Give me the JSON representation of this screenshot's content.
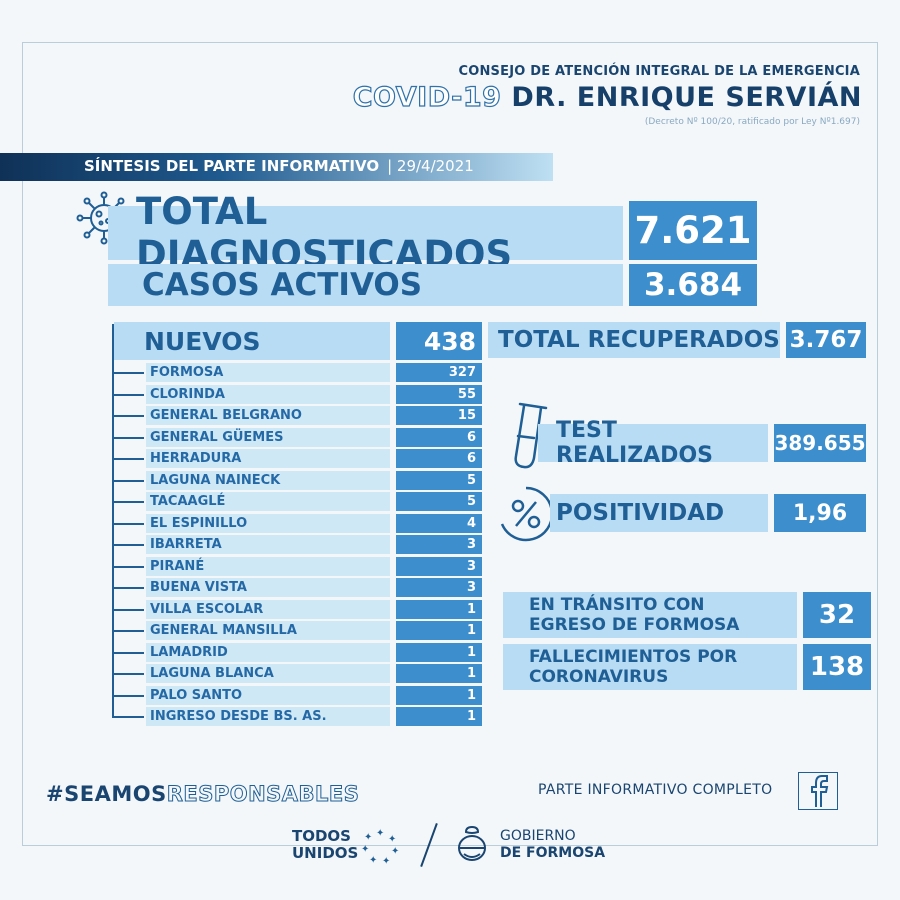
{
  "header": {
    "line1": "CONSEJO DE ATENCIÓN INTEGRAL DE LA EMERGENCIA",
    "covid": "COVID-19",
    "name": "DR. ENRIQUE SERVIÁN",
    "decree": "(Decreto Nº 100/20, ratificado por Ley Nº1.697)"
  },
  "synthesis": {
    "title": "SÍNTESIS DEL PARTE INFORMATIVO",
    "date": "| 29/4/2021"
  },
  "totals": {
    "diagnosed_label": "TOTAL DIAGNOSTICADOS",
    "diagnosed_value": "7.621",
    "active_label": "CASOS ACTIVOS",
    "active_value": "3.684",
    "new_label": "NUEVOS",
    "new_value": "438",
    "recovered_label": "TOTAL RECUPERADOS",
    "recovered_value": "3.767",
    "tests_label": "TEST REALIZADOS",
    "tests_value": "389.655",
    "positivity_label": "POSITIVIDAD",
    "positivity_value": "1,96",
    "transit_label_1": "EN TRÁNSITO CON",
    "transit_label_2": "EGRESO DE FORMOSA",
    "transit_value": "32",
    "deaths_label_1": "FALLECIMIENTOS POR",
    "deaths_label_2": "CORONAVIRUS",
    "deaths_value": "138"
  },
  "localities": [
    {
      "name": "FORMOSA",
      "value": "327"
    },
    {
      "name": "CLORINDA",
      "value": "55"
    },
    {
      "name": "GENERAL BELGRANO",
      "value": "15"
    },
    {
      "name": "GENERAL GÜEMES",
      "value": "6"
    },
    {
      "name": "HERRADURA",
      "value": "6"
    },
    {
      "name": "LAGUNA NAINECK",
      "value": "5"
    },
    {
      "name": "TACAAGLÉ",
      "value": "5"
    },
    {
      "name": "EL ESPINILLO",
      "value": "4"
    },
    {
      "name": "IBARRETA",
      "value": "3"
    },
    {
      "name": "PIRANÉ",
      "value": "3"
    },
    {
      "name": "BUENA VISTA",
      "value": "3"
    },
    {
      "name": "VILLA ESCOLAR",
      "value": "1"
    },
    {
      "name": "GENERAL MANSILLA",
      "value": "1"
    },
    {
      "name": "LAMADRID",
      "value": "1"
    },
    {
      "name": "LAGUNA BLANCA",
      "value": "1"
    },
    {
      "name": "PALO SANTO",
      "value": "1"
    },
    {
      "name": "INGRESO DESDE BS. AS.",
      "value": "1"
    }
  ],
  "footer": {
    "hashtag_bold": "#SEAMOS",
    "hashtag_outline": "RESPONSABLES",
    "full_report": "PARTE INFORMATIVO COMPLETO",
    "todos_1": "TODOS",
    "todos_2": "UNIDOS",
    "gob_1": "GOBIERNO",
    "gob_2": "DE FORMOSA"
  },
  "icons": [
    "virus-icon",
    "test-tube-icon",
    "percent-icon",
    "facebook-icon",
    "stars-ring-icon",
    "coat-of-arms-icon"
  ]
}
